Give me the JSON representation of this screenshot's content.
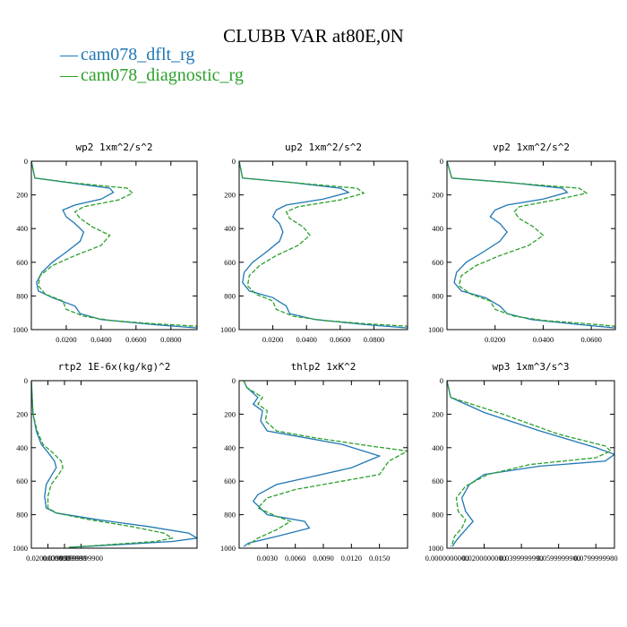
{
  "figure": {
    "title": "CLUBB VAR at80E,0N",
    "legend": [
      {
        "symbol": "—",
        "label": "cam078_dflt_rg",
        "color": "#1f77b4"
      },
      {
        "symbol": "—",
        "label": "cam078_diagnostic_rg",
        "color": "#2ca02c"
      }
    ]
  },
  "chart_data": [
    {
      "type": "line",
      "title": "wp2  1xm^2/s^2",
      "xlim": [
        0,
        0.095
      ],
      "ylim": [
        1000,
        0
      ],
      "xticks": [
        0.02,
        0.04,
        0.06,
        0.08
      ],
      "xtick_labels": [
        "0.0200",
        "0.0400",
        "0.0600",
        "0.0800"
      ],
      "yticks": [
        0,
        200,
        400,
        600,
        800,
        1000
      ],
      "ytick_labels": [
        "0",
        "200",
        "400",
        "600",
        "800",
        "1000"
      ],
      "series": [
        {
          "name": "cam078_dflt_rg",
          "color": "#1f77b4",
          "dashed": false,
          "x": [
            0,
            0.002,
            0.02,
            0.045,
            0.047,
            0.04,
            0.025,
            0.018,
            0.02,
            0.025,
            0.03,
            0.028,
            0.02,
            0.012,
            0.006,
            0.003,
            0.004,
            0.012,
            0.025,
            0.028,
            0.04,
            0.07,
            0.095
          ],
          "y": [
            0,
            100,
            125,
            160,
            185,
            225,
            260,
            290,
            330,
            370,
            420,
            475,
            540,
            600,
            660,
            720,
            770,
            810,
            860,
            905,
            940,
            970,
            990
          ]
        },
        {
          "name": "cam078_diagnostic_rg",
          "color": "#2ca02c",
          "dashed": true,
          "x": [
            0,
            0.002,
            0.025,
            0.055,
            0.058,
            0.05,
            0.03,
            0.025,
            0.028,
            0.035,
            0.045,
            0.04,
            0.025,
            0.012,
            0.005,
            0.004,
            0.008,
            0.018,
            0.02,
            0.03,
            0.045,
            0.07,
            0.095
          ],
          "y": [
            0,
            100,
            130,
            160,
            190,
            230,
            270,
            300,
            340,
            390,
            440,
            500,
            560,
            620,
            680,
            740,
            790,
            830,
            880,
            920,
            945,
            965,
            980
          ]
        }
      ]
    },
    {
      "type": "line",
      "title": "up2  1xm^2/s^2",
      "xlim": [
        0,
        0.1
      ],
      "ylim": [
        1000,
        0
      ],
      "xticks": [
        0.02,
        0.04,
        0.06,
        0.08
      ],
      "xtick_labels": [
        "0.0200",
        "0.0400",
        "0.0600",
        "0.0800"
      ],
      "yticks": [
        0,
        200,
        400,
        600,
        800,
        1000
      ],
      "ytick_labels": [
        "0",
        "200",
        "400",
        "600",
        "800",
        "1000"
      ],
      "series": [
        {
          "name": "cam078_dflt_rg",
          "color": "#1f77b4",
          "dashed": false,
          "x": [
            0,
            0.002,
            0.03,
            0.06,
            0.065,
            0.05,
            0.028,
            0.022,
            0.02,
            0.024,
            0.026,
            0.024,
            0.016,
            0.008,
            0.003,
            0.002,
            0.006,
            0.02,
            0.028,
            0.03,
            0.045,
            0.075,
            0.1
          ],
          "y": [
            0,
            100,
            125,
            160,
            185,
            225,
            260,
            290,
            330,
            370,
            420,
            475,
            540,
            600,
            660,
            720,
            770,
            810,
            860,
            905,
            940,
            970,
            990
          ]
        },
        {
          "name": "cam078_diagnostic_rg",
          "color": "#2ca02c",
          "dashed": true,
          "x": [
            0,
            0.002,
            0.035,
            0.07,
            0.074,
            0.06,
            0.035,
            0.028,
            0.03,
            0.038,
            0.042,
            0.035,
            0.022,
            0.012,
            0.006,
            0.005,
            0.01,
            0.02,
            0.022,
            0.032,
            0.05,
            0.075,
            0.1
          ],
          "y": [
            0,
            100,
            130,
            160,
            190,
            230,
            270,
            300,
            340,
            390,
            440,
            500,
            560,
            620,
            680,
            740,
            790,
            830,
            880,
            920,
            945,
            965,
            980
          ]
        }
      ]
    },
    {
      "type": "line",
      "title": "vp2  1xm^2/s^2",
      "xlim": [
        0,
        0.07
      ],
      "ylim": [
        1000,
        0
      ],
      "xticks": [
        0.02,
        0.04,
        0.06
      ],
      "xtick_labels": [
        "0.0200",
        "0.0400",
        "0.0600"
      ],
      "yticks": [
        0,
        200,
        400,
        600,
        800,
        1000
      ],
      "ytick_labels": [
        "0",
        "200",
        "400",
        "600",
        "800",
        "1000"
      ],
      "series": [
        {
          "name": "cam078_dflt_rg",
          "color": "#1f77b4",
          "dashed": false,
          "x": [
            0,
            0.002,
            0.025,
            0.048,
            0.05,
            0.04,
            0.025,
            0.02,
            0.018,
            0.022,
            0.025,
            0.022,
            0.015,
            0.008,
            0.004,
            0.003,
            0.006,
            0.016,
            0.022,
            0.025,
            0.035,
            0.055,
            0.07
          ],
          "y": [
            0,
            100,
            125,
            160,
            185,
            225,
            260,
            290,
            330,
            370,
            420,
            475,
            540,
            600,
            660,
            720,
            770,
            810,
            860,
            905,
            940,
            970,
            990
          ]
        },
        {
          "name": "cam078_diagnostic_rg",
          "color": "#2ca02c",
          "dashed": true,
          "x": [
            0,
            0.002,
            0.028,
            0.055,
            0.058,
            0.045,
            0.03,
            0.028,
            0.03,
            0.036,
            0.04,
            0.034,
            0.022,
            0.012,
            0.006,
            0.005,
            0.01,
            0.018,
            0.02,
            0.028,
            0.04,
            0.058,
            0.07
          ],
          "y": [
            0,
            100,
            130,
            160,
            190,
            230,
            270,
            300,
            340,
            390,
            440,
            500,
            560,
            620,
            680,
            740,
            790,
            830,
            880,
            920,
            945,
            965,
            980
          ]
        }
      ]
    },
    {
      "type": "line",
      "title": "rtp2  1E-6x(kg/kg)^2",
      "xlim": [
        0,
        0.2
      ],
      "ylim": [
        1000,
        0
      ],
      "xticks": [
        0.02,
        0.04,
        0.06
      ],
      "xtick_labels": [
        "0.0200000000",
        "0.0399999990",
        "0.0599999900"
      ],
      "yticks": [
        0,
        200,
        400,
        600,
        800,
        1000
      ],
      "ytick_labels": [
        "0",
        "200",
        "400",
        "600",
        "800",
        "1000"
      ],
      "series": [
        {
          "name": "cam078_dflt_rg",
          "color": "#1f77b4",
          "dashed": false,
          "x": [
            0,
            0.001,
            0.002,
            0.006,
            0.012,
            0.022,
            0.028,
            0.03,
            0.025,
            0.018,
            0.016,
            0.018,
            0.03,
            0.08,
            0.14,
            0.19,
            0.2,
            0.17,
            0.1,
            0.045
          ],
          "y": [
            0,
            100,
            200,
            300,
            380,
            440,
            480,
            520,
            560,
            620,
            690,
            760,
            790,
            830,
            870,
            910,
            940,
            960,
            980,
            995
          ]
        },
        {
          "name": "cam078_diagnostic_rg",
          "color": "#2ca02c",
          "dashed": true,
          "x": [
            0,
            0.001,
            0.002,
            0.007,
            0.014,
            0.028,
            0.036,
            0.038,
            0.033,
            0.024,
            0.02,
            0.02,
            0.03,
            0.07,
            0.12,
            0.16,
            0.17,
            0.15,
            0.09,
            0.045
          ],
          "y": [
            0,
            100,
            200,
            300,
            380,
            440,
            480,
            520,
            560,
            620,
            690,
            760,
            790,
            830,
            870,
            910,
            940,
            960,
            980,
            995
          ]
        }
      ]
    },
    {
      "type": "line",
      "title": "thlp2  1xK^2",
      "xlim": [
        0,
        0.018
      ],
      "ylim": [
        1000,
        0
      ],
      "xticks": [
        0.003,
        0.006,
        0.009,
        0.012,
        0.015
      ],
      "xtick_labels": [
        "0.0030",
        "0.0060",
        "0.0090",
        "0.0120",
        "0.0150"
      ],
      "yticks": [
        0,
        200,
        400,
        600,
        800,
        1000
      ],
      "ytick_labels": [
        "0",
        "200",
        "400",
        "600",
        "800",
        "1000"
      ],
      "series": [
        {
          "name": "cam078_dflt_rg",
          "color": "#1f77b4",
          "dashed": false,
          "x": [
            0.0005,
            0.0008,
            0.002,
            0.0015,
            0.0025,
            0.0023,
            0.003,
            0.006,
            0.011,
            0.015,
            0.012,
            0.008,
            0.004,
            0.002,
            0.0015,
            0.003,
            0.007,
            0.0075,
            0.004,
            0.001,
            0.0005
          ],
          "y": [
            0,
            40,
            100,
            140,
            180,
            240,
            300,
            330,
            380,
            450,
            520,
            570,
            620,
            680,
            720,
            800,
            840,
            880,
            930,
            970,
            990
          ]
        },
        {
          "name": "cam078_diagnostic_rg",
          "color": "#2ca02c",
          "dashed": true,
          "x": [
            0.0005,
            0.0008,
            0.0025,
            0.002,
            0.003,
            0.0028,
            0.004,
            0.008,
            0.014,
            0.018,
            0.016,
            0.015,
            0.011,
            0.006,
            0.003,
            0.002,
            0.004,
            0.0055,
            0.004,
            0.002,
            0.001
          ],
          "y": [
            0,
            40,
            100,
            140,
            180,
            240,
            300,
            340,
            390,
            420,
            480,
            560,
            600,
            650,
            700,
            760,
            810,
            840,
            890,
            940,
            980
          ]
        }
      ]
    },
    {
      "type": "line",
      "title": "wp3  1xm^3/s^3",
      "xlim": [
        0,
        0.09
      ],
      "ylim": [
        1000,
        0
      ],
      "xticks": [
        0,
        0.02,
        0.04,
        0.06,
        0.08
      ],
      "xtick_labels": [
        "0.0000000000",
        "0.0200000000",
        "0.0399999990",
        "0.0599999900",
        "0.0799999980"
      ],
      "yticks": [
        0,
        200,
        400,
        600,
        800,
        1000
      ],
      "ytick_labels": [
        "0",
        "200",
        "400",
        "600",
        "800",
        "1000"
      ],
      "series": [
        {
          "name": "cam078_dflt_rg",
          "color": "#1f77b4",
          "dashed": false,
          "x": [
            0,
            0.002,
            0.02,
            0.05,
            0.08,
            0.09,
            0.085,
            0.05,
            0.02,
            0.012,
            0.008,
            0.01,
            0.014,
            0.01,
            0.006,
            0.004,
            0.003
          ],
          "y": [
            0,
            100,
            190,
            300,
            400,
            440,
            480,
            510,
            560,
            620,
            700,
            780,
            840,
            890,
            940,
            970,
            990
          ]
        },
        {
          "name": "cam078_diagnostic_rg",
          "color": "#2ca02c",
          "dashed": true,
          "x": [
            0,
            0.002,
            0.03,
            0.06,
            0.085,
            0.088,
            0.08,
            0.045,
            0.022,
            0.01,
            0.005,
            0.006,
            0.01,
            0.008,
            0.004,
            0.003,
            0.002
          ],
          "y": [
            0,
            100,
            200,
            320,
            390,
            420,
            460,
            500,
            560,
            630,
            700,
            780,
            830,
            880,
            930,
            970,
            990
          ]
        }
      ]
    }
  ]
}
